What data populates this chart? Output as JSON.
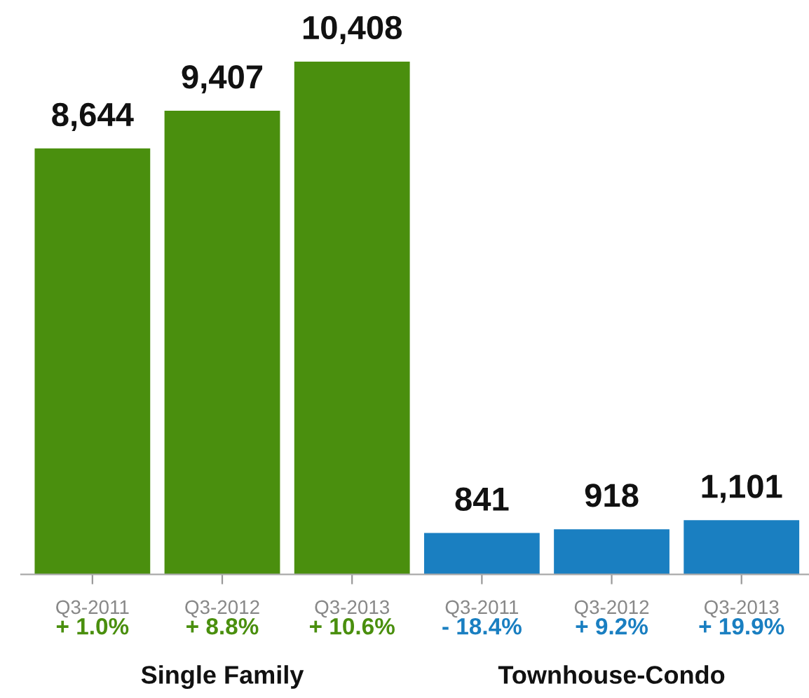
{
  "chart_data": {
    "type": "bar",
    "categories": [
      "Q3-2011",
      "Q3-2012",
      "Q3-2013",
      "Q3-2011",
      "Q3-2012",
      "Q3-2013"
    ],
    "series": [
      {
        "color": "#4a8f0e",
        "values": [
          8644,
          9407,
          10408,
          null,
          null,
          null
        ],
        "value_labels": [
          "8,644",
          "9,407",
          "10,408",
          null,
          null,
          null
        ]
      },
      {
        "color": "#1a7fc1",
        "values": [
          null,
          null,
          null,
          841,
          918,
          1101
        ],
        "value_labels": [
          null,
          null,
          null,
          "841",
          "918",
          "1,101"
        ]
      }
    ],
    "annotations": [
      "+ 1.0%",
      "+ 8.8%",
      "+ 10.6%",
      "- 18.4%",
      "+ 9.2%",
      "+ 19.9%",
      "Single Family",
      "Townhouse-Condo"
    ],
    "tick_labels": "x",
    "grid": false,
    "legend": false
  }
}
